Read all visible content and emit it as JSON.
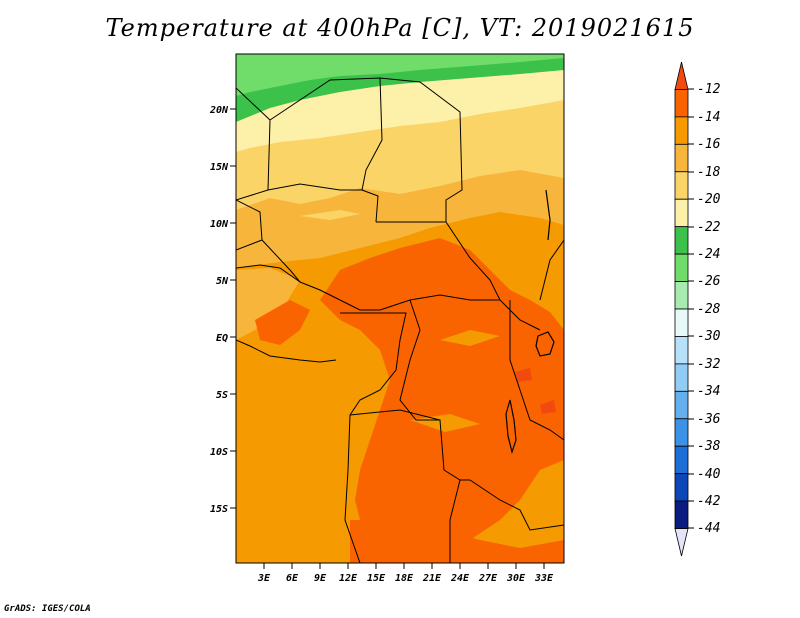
{
  "title": "Temperature at 400hPa [C], VT: 2019021615",
  "credit": "GrADS: IGES/COLA",
  "map": {
    "lat_labels": [
      "20N",
      "15N",
      "10N",
      "5N",
      "EQ",
      "5S",
      "10S",
      "15S"
    ],
    "lon_labels": [
      "3E",
      "6E",
      "9E",
      "12E",
      "15E",
      "18E",
      "21E",
      "24E",
      "27E",
      "30E",
      "33E"
    ]
  },
  "colorbar": {
    "labels": [
      "-12",
      "-14",
      "-16",
      "-18",
      "-20",
      "-22",
      "-24",
      "-26",
      "-28",
      "-30",
      "-32",
      "-34",
      "-36",
      "-38",
      "-40",
      "-42",
      "-44"
    ],
    "colors": [
      "#f04a10",
      "#fa6400",
      "#f59a00",
      "#f8b53c",
      "#fbd468",
      "#fdf0a8",
      "#3cc24a",
      "#70dc6a",
      "#a8ebb0",
      "#e8faf8",
      "#b8e0f8",
      "#90ccf4",
      "#64b0ee",
      "#3c92e6",
      "#1e6ed8",
      "#0c46b8",
      "#0a1c80",
      "#e4e4f8"
    ]
  }
}
